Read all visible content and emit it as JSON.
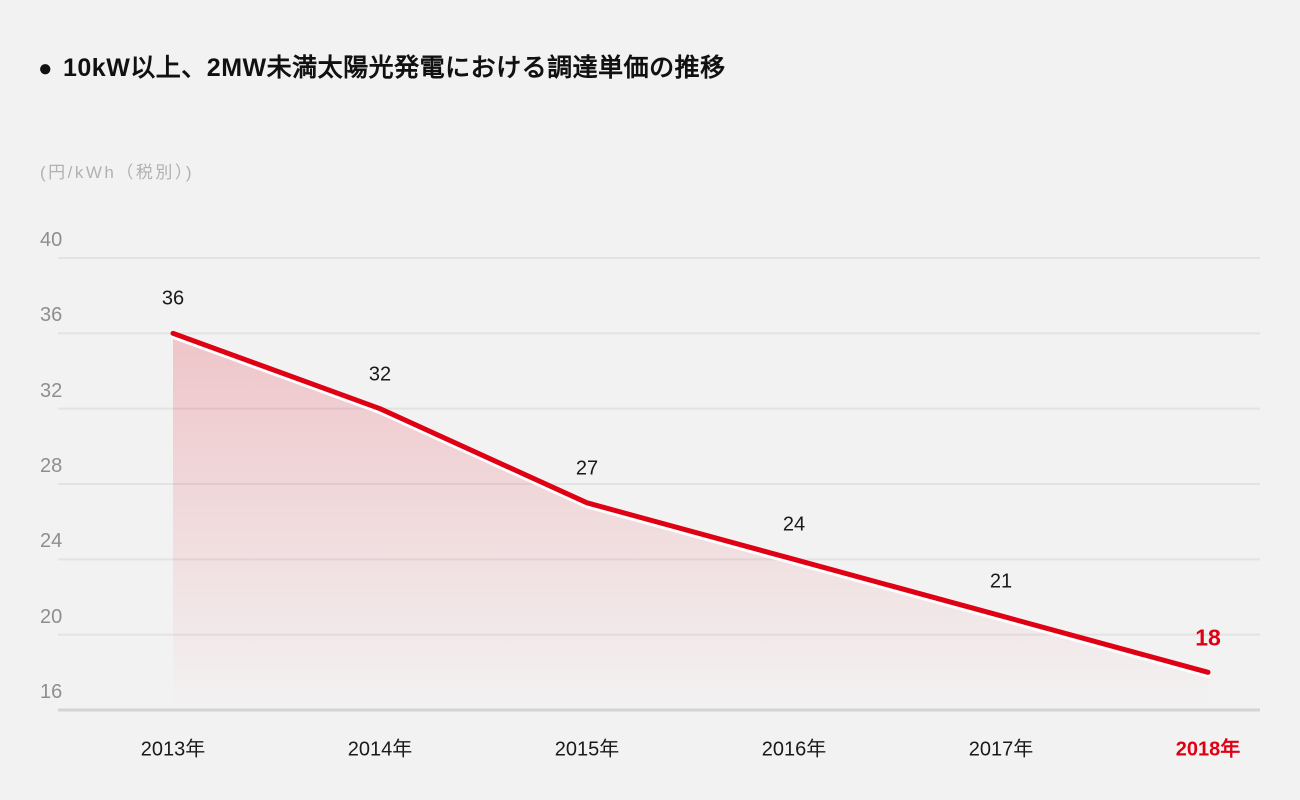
{
  "page": {
    "background": "#f2f2f2"
  },
  "header": {
    "bullet": "●",
    "title": "10kW以上、2MW未満太陽光発電における調達単価の推移"
  },
  "chart_data": {
    "type": "area",
    "title": "10kW以上、2MW未満太陽光発電における調達単価の推移",
    "unit_label": "(円/kWh（税別）)",
    "categories": [
      "2013年",
      "2014年",
      "2015年",
      "2016年",
      "2017年",
      "2018年"
    ],
    "values": [
      36,
      32,
      27,
      24,
      21,
      18
    ],
    "data_labels": [
      "36",
      "32",
      "27",
      "24",
      "21",
      "18"
    ],
    "y_ticks": [
      40,
      36,
      32,
      28,
      24,
      20,
      16
    ],
    "ylim": [
      16,
      40
    ],
    "grid": true,
    "legend": "none",
    "highlight_last": true,
    "colors": {
      "line": "#e00014",
      "line_underlay": "#ffffff",
      "area_top": "rgba(224,0,20,0.19)",
      "area_bottom": "rgba(224,0,20,0)",
      "grid": "#e3e3e3",
      "axis": "#d4d4d4",
      "tick_label": "#8e8e8e",
      "unit_label": "#b3b0b0",
      "data_label": "#1a1a1a",
      "category_label": "#1a1a1a",
      "highlight": "#e00014"
    }
  }
}
